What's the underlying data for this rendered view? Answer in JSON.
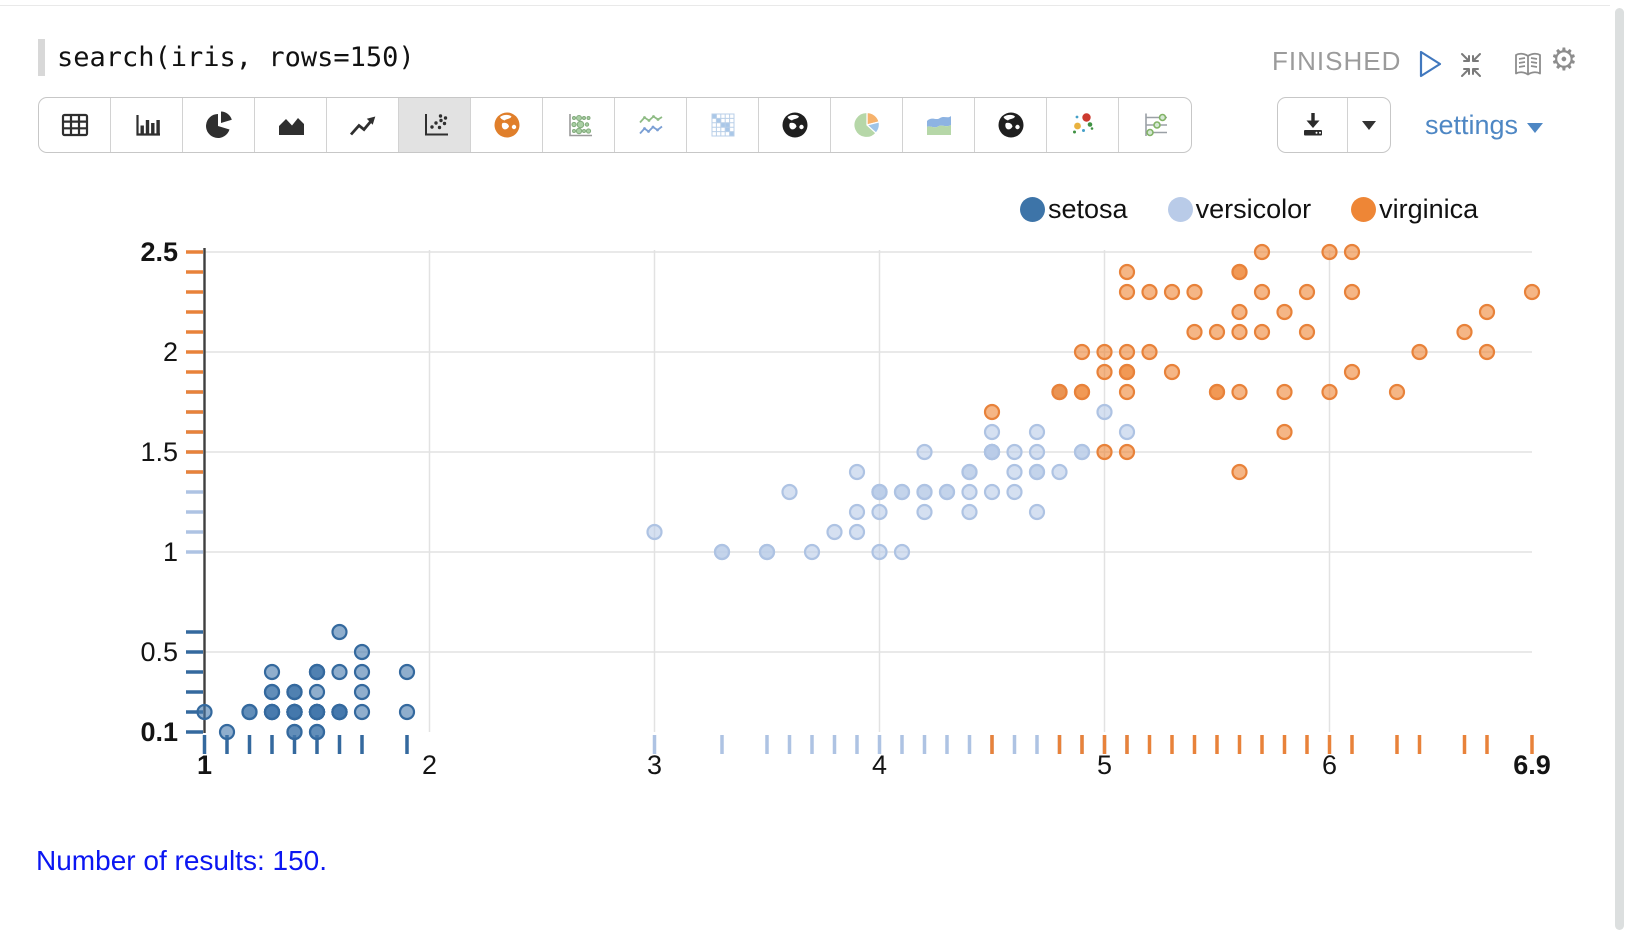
{
  "query_bar": {
    "query": "search(iris, rows=150)",
    "status": "FINISHED"
  },
  "toolbar": {
    "buttons": [
      {
        "icon": "table",
        "selected": false
      },
      {
        "icon": "bar-chart",
        "selected": false
      },
      {
        "icon": "pie-chart",
        "selected": false
      },
      {
        "icon": "area-chart",
        "selected": false
      },
      {
        "icon": "trend-line-chart",
        "selected": false
      },
      {
        "icon": "scatter-plot",
        "selected": true
      },
      {
        "icon": "world-map",
        "selected": false
      },
      {
        "icon": "punch-card",
        "selected": false
      },
      {
        "icon": "time-series-lines",
        "selected": false
      },
      {
        "icon": "heat-map",
        "selected": false
      },
      {
        "icon": "globe",
        "selected": false
      },
      {
        "icon": "pie-chart-color",
        "selected": false
      },
      {
        "icon": "stacked-area",
        "selected": false
      },
      {
        "icon": "globe-2",
        "selected": false
      },
      {
        "icon": "bubble-scatter",
        "selected": false
      },
      {
        "icon": "dot-plot",
        "selected": false
      }
    ],
    "settings_label": "settings"
  },
  "legend": {
    "items": [
      {
        "label": "setosa",
        "color": "#3d74a8"
      },
      {
        "label": "versicolor",
        "color": "#b9cbe8"
      },
      {
        "label": "virginica",
        "color": "#ee8636"
      }
    ]
  },
  "chart_data": {
    "type": "scatter",
    "title": "",
    "xlabel": "",
    "ylabel": "",
    "xlim": [
      1,
      6.9
    ],
    "ylim": [
      0.1,
      2.5
    ],
    "grid": true,
    "legend_position": "top-right",
    "x_gridlines": [
      2,
      3,
      4,
      5,
      6
    ],
    "y_gridlines": [
      0.5,
      1,
      1.5,
      2,
      2.5
    ],
    "x_ticks": [
      {
        "v": 1,
        "label": "1",
        "bold": true
      },
      {
        "v": 2,
        "label": "2",
        "bold": false
      },
      {
        "v": 3,
        "label": "3",
        "bold": false
      },
      {
        "v": 4,
        "label": "4",
        "bold": false
      },
      {
        "v": 5,
        "label": "5",
        "bold": false
      },
      {
        "v": 6,
        "label": "6",
        "bold": false
      },
      {
        "v": 6.9,
        "label": "6.9",
        "bold": true
      }
    ],
    "y_ticks": [
      {
        "v": 0.1,
        "label": "0.1",
        "bold": true
      },
      {
        "v": 0.5,
        "label": "0.5",
        "bold": false
      },
      {
        "v": 1,
        "label": "1",
        "bold": false
      },
      {
        "v": 1.5,
        "label": "1.5",
        "bold": false
      },
      {
        "v": 2,
        "label": "2",
        "bold": false
      },
      {
        "v": 2.5,
        "label": "2.5",
        "bold": true
      }
    ],
    "series": [
      {
        "name": "setosa",
        "color": "#4478ac",
        "stroke": "#34699e",
        "points": [
          [
            1.4,
            0.2
          ],
          [
            1.4,
            0.2
          ],
          [
            1.3,
            0.2
          ],
          [
            1.5,
            0.2
          ],
          [
            1.4,
            0.2
          ],
          [
            1.7,
            0.4
          ],
          [
            1.4,
            0.3
          ],
          [
            1.5,
            0.2
          ],
          [
            1.4,
            0.2
          ],
          [
            1.5,
            0.1
          ],
          [
            1.5,
            0.2
          ],
          [
            1.6,
            0.2
          ],
          [
            1.4,
            0.1
          ],
          [
            1.1,
            0.1
          ],
          [
            1.2,
            0.2
          ],
          [
            1.5,
            0.4
          ],
          [
            1.3,
            0.4
          ],
          [
            1.4,
            0.3
          ],
          [
            1.7,
            0.3
          ],
          [
            1.5,
            0.3
          ],
          [
            1.7,
            0.2
          ],
          [
            1.5,
            0.4
          ],
          [
            1.0,
            0.2
          ],
          [
            1.7,
            0.5
          ],
          [
            1.9,
            0.2
          ],
          [
            1.6,
            0.2
          ],
          [
            1.6,
            0.4
          ],
          [
            1.5,
            0.2
          ],
          [
            1.4,
            0.2
          ],
          [
            1.6,
            0.2
          ],
          [
            1.6,
            0.2
          ],
          [
            1.5,
            0.4
          ],
          [
            1.5,
            0.1
          ],
          [
            1.4,
            0.2
          ],
          [
            1.5,
            0.2
          ],
          [
            1.2,
            0.2
          ],
          [
            1.3,
            0.2
          ],
          [
            1.4,
            0.1
          ],
          [
            1.3,
            0.2
          ],
          [
            1.5,
            0.2
          ],
          [
            1.3,
            0.3
          ],
          [
            1.3,
            0.3
          ],
          [
            1.3,
            0.2
          ],
          [
            1.6,
            0.6
          ],
          [
            1.9,
            0.4
          ],
          [
            1.4,
            0.3
          ],
          [
            1.6,
            0.2
          ],
          [
            1.4,
            0.2
          ],
          [
            1.5,
            0.2
          ],
          [
            1.4,
            0.2
          ]
        ]
      },
      {
        "name": "versicolor",
        "color": "#b9cbe8",
        "stroke": "#aec3e3",
        "points": [
          [
            4.7,
            1.4
          ],
          [
            4.5,
            1.5
          ],
          [
            4.9,
            1.5
          ],
          [
            4.0,
            1.3
          ],
          [
            4.6,
            1.5
          ],
          [
            4.5,
            1.3
          ],
          [
            4.7,
            1.6
          ],
          [
            3.3,
            1.0
          ],
          [
            4.6,
            1.3
          ],
          [
            3.9,
            1.4
          ],
          [
            3.5,
            1.0
          ],
          [
            4.2,
            1.5
          ],
          [
            4.0,
            1.0
          ],
          [
            4.7,
            1.4
          ],
          [
            3.6,
            1.3
          ],
          [
            4.4,
            1.4
          ],
          [
            4.5,
            1.5
          ],
          [
            4.1,
            1.0
          ],
          [
            4.5,
            1.5
          ],
          [
            3.9,
            1.1
          ],
          [
            4.8,
            1.8
          ],
          [
            4.0,
            1.3
          ],
          [
            4.9,
            1.5
          ],
          [
            4.7,
            1.2
          ],
          [
            4.3,
            1.3
          ],
          [
            4.4,
            1.4
          ],
          [
            4.8,
            1.4
          ],
          [
            5.0,
            1.7
          ],
          [
            4.5,
            1.5
          ],
          [
            3.5,
            1.0
          ],
          [
            3.8,
            1.1
          ],
          [
            3.7,
            1.0
          ],
          [
            3.9,
            1.2
          ],
          [
            5.1,
            1.6
          ],
          [
            4.5,
            1.5
          ],
          [
            4.5,
            1.6
          ],
          [
            4.7,
            1.5
          ],
          [
            4.4,
            1.3
          ],
          [
            4.1,
            1.3
          ],
          [
            4.0,
            1.3
          ],
          [
            4.4,
            1.2
          ],
          [
            4.6,
            1.4
          ],
          [
            4.0,
            1.2
          ],
          [
            3.3,
            1.0
          ],
          [
            4.2,
            1.3
          ],
          [
            4.2,
            1.2
          ],
          [
            4.2,
            1.3
          ],
          [
            4.3,
            1.3
          ],
          [
            3.0,
            1.1
          ],
          [
            4.1,
            1.3
          ]
        ]
      },
      {
        "name": "virginica",
        "color": "#ee8636",
        "stroke": "#e8823a",
        "points": [
          [
            6.0,
            2.5
          ],
          [
            5.1,
            1.9
          ],
          [
            5.9,
            2.1
          ],
          [
            5.6,
            1.8
          ],
          [
            5.8,
            2.2
          ],
          [
            6.6,
            2.1
          ],
          [
            4.5,
            1.7
          ],
          [
            6.3,
            1.8
          ],
          [
            5.8,
            1.8
          ],
          [
            6.1,
            2.5
          ],
          [
            5.1,
            2.0
          ],
          [
            5.3,
            1.9
          ],
          [
            5.5,
            2.1
          ],
          [
            5.0,
            2.0
          ],
          [
            5.1,
            2.4
          ],
          [
            5.3,
            2.3
          ],
          [
            5.5,
            1.8
          ],
          [
            6.7,
            2.2
          ],
          [
            6.9,
            2.3
          ],
          [
            5.0,
            1.5
          ],
          [
            5.7,
            2.3
          ],
          [
            4.9,
            2.0
          ],
          [
            6.7,
            2.0
          ],
          [
            4.9,
            1.8
          ],
          [
            5.7,
            2.1
          ],
          [
            6.0,
            1.8
          ],
          [
            4.8,
            1.8
          ],
          [
            4.9,
            1.8
          ],
          [
            5.6,
            2.1
          ],
          [
            5.8,
            1.6
          ],
          [
            6.1,
            1.9
          ],
          [
            6.4,
            2.0
          ],
          [
            5.6,
            2.2
          ],
          [
            5.1,
            1.5
          ],
          [
            5.6,
            1.4
          ],
          [
            6.1,
            2.3
          ],
          [
            5.6,
            2.4
          ],
          [
            5.5,
            1.8
          ],
          [
            4.8,
            1.8
          ],
          [
            5.4,
            2.1
          ],
          [
            5.6,
            2.4
          ],
          [
            5.1,
            2.3
          ],
          [
            5.1,
            1.9
          ],
          [
            5.9,
            2.3
          ],
          [
            5.7,
            2.5
          ],
          [
            5.2,
            2.3
          ],
          [
            5.0,
            1.9
          ],
          [
            5.2,
            2.0
          ],
          [
            5.4,
            2.3
          ],
          [
            5.1,
            1.8
          ]
        ]
      }
    ]
  },
  "footer": {
    "text": "Number of results: 150."
  }
}
